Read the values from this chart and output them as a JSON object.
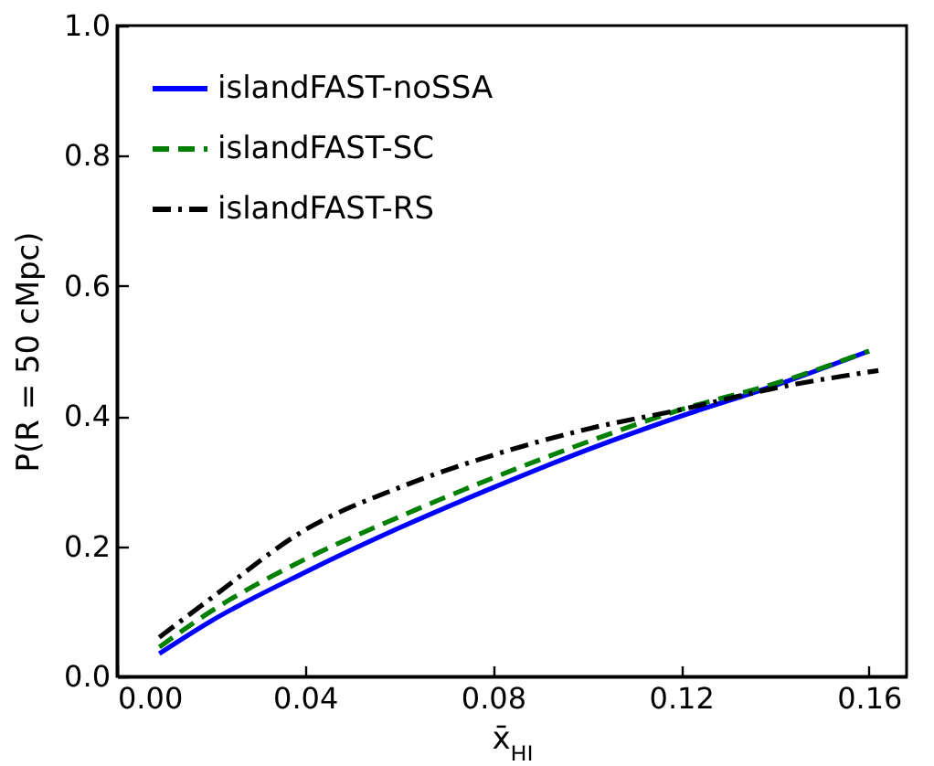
{
  "chart_data": {
    "type": "line",
    "xlabel": "x̄$_{HI}$",
    "ylabel": "P(R = 50 cMpc)",
    "xlim": [
      0,
      0.168
    ],
    "xticks": [
      {
        "value": 0,
        "label": "0.00"
      },
      0.04,
      0.08,
      0.12,
      0.16
    ],
    "ylim": [
      0,
      1
    ],
    "yticks": [
      {
        "value": 0,
        "label": "0.0"
      },
      0.2,
      0.4,
      0.6,
      0.8,
      {
        "value": 1,
        "label": "1.0"
      }
    ],
    "legend": "top left",
    "grid": false,
    "series": [
      {
        "name": "islandFAST-noSSA",
        "color": "#0000ff",
        "line_style": "solid",
        "x": [
          0.009,
          0.02,
          0.04,
          0.06,
          0.08,
          0.1,
          0.12,
          0.14,
          0.16
        ],
        "values": [
          0.035,
          0.085,
          0.16,
          0.228,
          0.29,
          0.348,
          0.4,
          0.447,
          0.5
        ]
      },
      {
        "name": "islandFAST-SC",
        "color": "#008000",
        "line_style": "dashed",
        "x": [
          0.009,
          0.02,
          0.04,
          0.06,
          0.08,
          0.1,
          0.12,
          0.14,
          0.16
        ],
        "values": [
          0.045,
          0.1,
          0.18,
          0.245,
          0.305,
          0.36,
          0.41,
          0.45,
          0.5
        ]
      },
      {
        "name": "islandFAST-RS",
        "color": "#000000",
        "line_style": "dashdot",
        "x": [
          0.009,
          0.02,
          0.04,
          0.06,
          0.08,
          0.1,
          0.12,
          0.14,
          0.162
        ],
        "values": [
          0.06,
          0.12,
          0.225,
          0.29,
          0.34,
          0.38,
          0.41,
          0.443,
          0.47
        ]
      }
    ]
  }
}
